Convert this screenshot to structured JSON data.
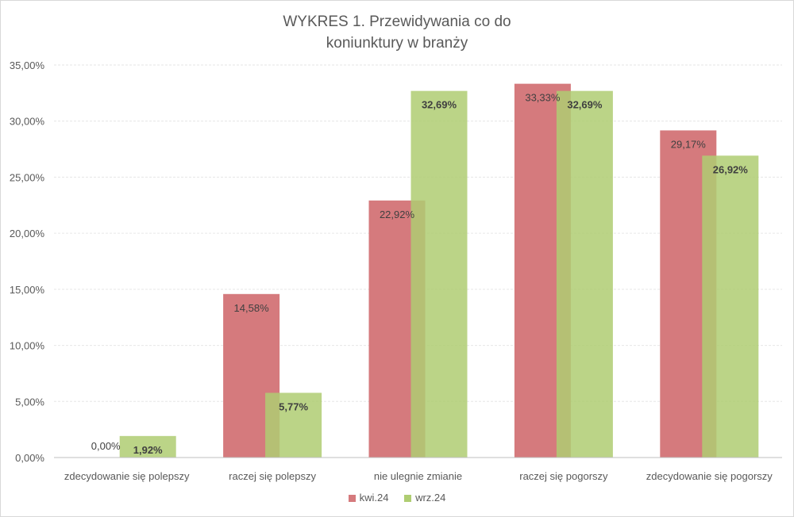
{
  "chart_data": {
    "type": "bar",
    "title_line1": "WYKRES 1. Przewidywania co do",
    "title_line2": "koniunktury w branży",
    "categories": [
      "zdecydowanie się polepszy",
      "raczej się polepszy",
      "nie ulegnie zmianie",
      "raczej się pogorszy",
      "zdecydowanie się pogorszy"
    ],
    "series": [
      {
        "name": "kwi.24",
        "color": "#d57a7d",
        "values": [
          0.0,
          14.58,
          22.92,
          33.33,
          29.17
        ],
        "labels": [
          "0,00%",
          "14,58%",
          "22,92%",
          "33,33%",
          "29,17%"
        ]
      },
      {
        "name": "wrz.24",
        "color": "#afcd72",
        "values": [
          1.92,
          5.77,
          32.69,
          32.69,
          26.92
        ],
        "labels": [
          "1,92%",
          "5,77%",
          "32,69%",
          "32,69%",
          "26,92%"
        ]
      }
    ],
    "ylim": [
      0,
      35
    ],
    "yticks": [
      0,
      5,
      10,
      15,
      20,
      25,
      30,
      35
    ],
    "ytick_labels": [
      "0,00%",
      "5,00%",
      "10,00%",
      "15,00%",
      "20,00%",
      "25,00%",
      "30,00%",
      "35,00%"
    ],
    "grid": true,
    "legend_position": "bottom"
  }
}
